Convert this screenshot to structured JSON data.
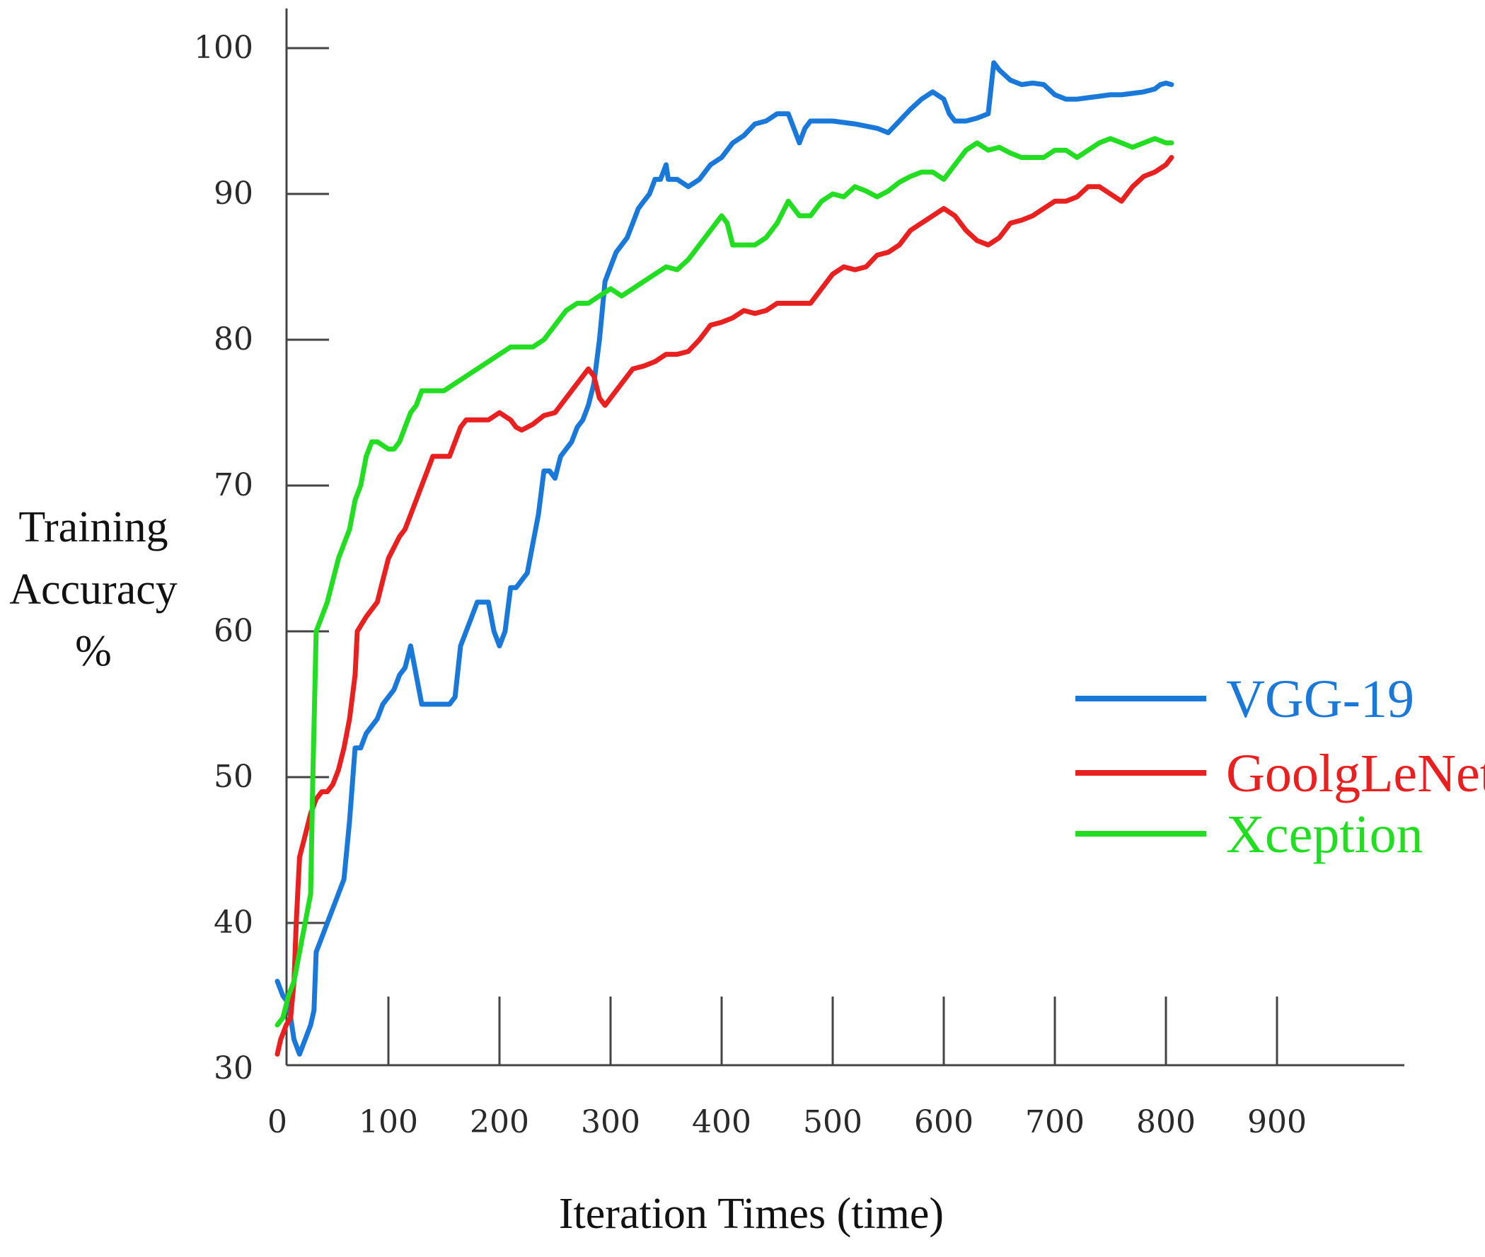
{
  "chart_data": {
    "type": "line",
    "title": "",
    "xlabel": "Iteration Times (time)",
    "ylabel_lines": [
      "Training",
      "Accuracy",
      "%"
    ],
    "xlim": [
      0,
      1000
    ],
    "ylim": [
      30,
      100
    ],
    "x_ticks": [
      0,
      100,
      200,
      300,
      400,
      500,
      600,
      700,
      800,
      900
    ],
    "y_ticks": [
      30,
      40,
      50,
      60,
      70,
      80,
      90,
      100
    ],
    "grid": false,
    "legend_position": "right",
    "series": [
      {
        "name": "VGG-19",
        "color": "#1a78d8",
        "points": [
          [
            0,
            36
          ],
          [
            5,
            35
          ],
          [
            10,
            34.5
          ],
          [
            15,
            32
          ],
          [
            20,
            31
          ],
          [
            25,
            32
          ],
          [
            30,
            33
          ],
          [
            33,
            34
          ],
          [
            35,
            38
          ],
          [
            40,
            39
          ],
          [
            45,
            40
          ],
          [
            50,
            41
          ],
          [
            55,
            42
          ],
          [
            60,
            43
          ],
          [
            65,
            47
          ],
          [
            70,
            52
          ],
          [
            75,
            52
          ],
          [
            80,
            53
          ],
          [
            85,
            53.5
          ],
          [
            90,
            54
          ],
          [
            95,
            55
          ],
          [
            100,
            55.5
          ],
          [
            105,
            56
          ],
          [
            110,
            57
          ],
          [
            115,
            57.5
          ],
          [
            120,
            59
          ],
          [
            125,
            57
          ],
          [
            130,
            55
          ],
          [
            135,
            55
          ],
          [
            140,
            55
          ],
          [
            145,
            55
          ],
          [
            150,
            55
          ],
          [
            155,
            55
          ],
          [
            160,
            55.5
          ],
          [
            165,
            59
          ],
          [
            170,
            60
          ],
          [
            175,
            61
          ],
          [
            180,
            62
          ],
          [
            185,
            62
          ],
          [
            190,
            62
          ],
          [
            195,
            60
          ],
          [
            200,
            59
          ],
          [
            205,
            60
          ],
          [
            210,
            63
          ],
          [
            215,
            63
          ],
          [
            220,
            63.5
          ],
          [
            225,
            64
          ],
          [
            230,
            66
          ],
          [
            235,
            68
          ],
          [
            240,
            71
          ],
          [
            245,
            71
          ],
          [
            250,
            70.5
          ],
          [
            255,
            72
          ],
          [
            260,
            72.5
          ],
          [
            265,
            73
          ],
          [
            270,
            74
          ],
          [
            275,
            74.5
          ],
          [
            280,
            75.5
          ],
          [
            285,
            77
          ],
          [
            290,
            80
          ],
          [
            295,
            84
          ],
          [
            300,
            85
          ],
          [
            305,
            86
          ],
          [
            310,
            86.5
          ],
          [
            315,
            87
          ],
          [
            320,
            88
          ],
          [
            325,
            89
          ],
          [
            330,
            89.5
          ],
          [
            335,
            90
          ],
          [
            340,
            91
          ],
          [
            345,
            91
          ],
          [
            350,
            92
          ],
          [
            352,
            91
          ],
          [
            360,
            91
          ],
          [
            370,
            90.5
          ],
          [
            380,
            91
          ],
          [
            390,
            92
          ],
          [
            400,
            92.5
          ],
          [
            410,
            93.5
          ],
          [
            420,
            94
          ],
          [
            430,
            94.8
          ],
          [
            440,
            95
          ],
          [
            450,
            95.5
          ],
          [
            460,
            95.5
          ],
          [
            465,
            94.5
          ],
          [
            470,
            93.5
          ],
          [
            475,
            94.5
          ],
          [
            480,
            95
          ],
          [
            490,
            95
          ],
          [
            500,
            95
          ],
          [
            520,
            94.8
          ],
          [
            540,
            94.5
          ],
          [
            550,
            94.2
          ],
          [
            560,
            95
          ],
          [
            570,
            95.8
          ],
          [
            580,
            96.5
          ],
          [
            590,
            97
          ],
          [
            600,
            96.5
          ],
          [
            605,
            95.5
          ],
          [
            610,
            95
          ],
          [
            620,
            95
          ],
          [
            630,
            95.2
          ],
          [
            640,
            95.5
          ],
          [
            645,
            99
          ],
          [
            650,
            98.5
          ],
          [
            660,
            97.8
          ],
          [
            670,
            97.5
          ],
          [
            680,
            97.6
          ],
          [
            690,
            97.5
          ],
          [
            700,
            96.8
          ],
          [
            710,
            96.5
          ],
          [
            720,
            96.5
          ],
          [
            730,
            96.6
          ],
          [
            740,
            96.7
          ],
          [
            750,
            96.8
          ],
          [
            760,
            96.8
          ],
          [
            770,
            96.9
          ],
          [
            780,
            97
          ],
          [
            790,
            97.2
          ],
          [
            795,
            97.5
          ],
          [
            800,
            97.6
          ],
          [
            805,
            97.5
          ]
        ]
      },
      {
        "name": "GoolgLeNet",
        "color": "#e82020",
        "points": [
          [
            0,
            31
          ],
          [
            3,
            32
          ],
          [
            8,
            33
          ],
          [
            12,
            33.5
          ],
          [
            15,
            36
          ],
          [
            17,
            40
          ],
          [
            20,
            44.5
          ],
          [
            25,
            46
          ],
          [
            30,
            47.5
          ],
          [
            35,
            48.5
          ],
          [
            40,
            49
          ],
          [
            45,
            49
          ],
          [
            50,
            49.5
          ],
          [
            55,
            50.5
          ],
          [
            60,
            52
          ],
          [
            65,
            54
          ],
          [
            70,
            57
          ],
          [
            72,
            60
          ],
          [
            80,
            61
          ],
          [
            90,
            62
          ],
          [
            95,
            63.5
          ],
          [
            100,
            65
          ],
          [
            110,
            66.5
          ],
          [
            115,
            67
          ],
          [
            120,
            68
          ],
          [
            125,
            69
          ],
          [
            130,
            70
          ],
          [
            135,
            71
          ],
          [
            140,
            72
          ],
          [
            150,
            72
          ],
          [
            155,
            72
          ],
          [
            160,
            73
          ],
          [
            165,
            74
          ],
          [
            170,
            74.5
          ],
          [
            180,
            74.5
          ],
          [
            190,
            74.5
          ],
          [
            200,
            75
          ],
          [
            210,
            74.5
          ],
          [
            215,
            74
          ],
          [
            220,
            73.8
          ],
          [
            230,
            74.2
          ],
          [
            240,
            74.8
          ],
          [
            250,
            75
          ],
          [
            260,
            76
          ],
          [
            270,
            77
          ],
          [
            280,
            78
          ],
          [
            285,
            77.5
          ],
          [
            290,
            76
          ],
          [
            295,
            75.5
          ],
          [
            300,
            76
          ],
          [
            310,
            77
          ],
          [
            320,
            78
          ],
          [
            330,
            78.2
          ],
          [
            340,
            78.5
          ],
          [
            350,
            79
          ],
          [
            360,
            79
          ],
          [
            370,
            79.2
          ],
          [
            380,
            80
          ],
          [
            390,
            81
          ],
          [
            400,
            81.2
          ],
          [
            410,
            81.5
          ],
          [
            420,
            82
          ],
          [
            430,
            81.8
          ],
          [
            440,
            82
          ],
          [
            450,
            82.5
          ],
          [
            460,
            82.5
          ],
          [
            470,
            82.5
          ],
          [
            480,
            82.5
          ],
          [
            490,
            83.5
          ],
          [
            500,
            84.5
          ],
          [
            510,
            85
          ],
          [
            520,
            84.8
          ],
          [
            530,
            85
          ],
          [
            540,
            85.8
          ],
          [
            550,
            86
          ],
          [
            560,
            86.5
          ],
          [
            570,
            87.5
          ],
          [
            580,
            88
          ],
          [
            590,
            88.5
          ],
          [
            600,
            89
          ],
          [
            610,
            88.5
          ],
          [
            620,
            87.5
          ],
          [
            630,
            86.8
          ],
          [
            640,
            86.5
          ],
          [
            650,
            87
          ],
          [
            660,
            88
          ],
          [
            670,
            88.2
          ],
          [
            680,
            88.5
          ],
          [
            690,
            89
          ],
          [
            700,
            89.5
          ],
          [
            710,
            89.5
          ],
          [
            720,
            89.8
          ],
          [
            730,
            90.5
          ],
          [
            740,
            90.5
          ],
          [
            750,
            90
          ],
          [
            760,
            89.5
          ],
          [
            770,
            90.5
          ],
          [
            780,
            91.2
          ],
          [
            790,
            91.5
          ],
          [
            800,
            92
          ],
          [
            805,
            92.5
          ]
        ]
      },
      {
        "name": "Xception",
        "color": "#22dd22",
        "points": [
          [
            0,
            33
          ],
          [
            5,
            33.5
          ],
          [
            10,
            35
          ],
          [
            15,
            36
          ],
          [
            20,
            38
          ],
          [
            25,
            40
          ],
          [
            30,
            42
          ],
          [
            32,
            50
          ],
          [
            35,
            60
          ],
          [
            40,
            61
          ],
          [
            45,
            62
          ],
          [
            50,
            63.5
          ],
          [
            55,
            65
          ],
          [
            60,
            66
          ],
          [
            65,
            67
          ],
          [
            70,
            69
          ],
          [
            75,
            70
          ],
          [
            80,
            72
          ],
          [
            85,
            73
          ],
          [
            90,
            73
          ],
          [
            100,
            72.5
          ],
          [
            105,
            72.5
          ],
          [
            110,
            73
          ],
          [
            115,
            74
          ],
          [
            120,
            75
          ],
          [
            125,
            75.5
          ],
          [
            130,
            76.5
          ],
          [
            140,
            76.5
          ],
          [
            150,
            76.5
          ],
          [
            160,
            77
          ],
          [
            170,
            77.5
          ],
          [
            180,
            78
          ],
          [
            190,
            78.5
          ],
          [
            200,
            79
          ],
          [
            210,
            79.5
          ],
          [
            220,
            79.5
          ],
          [
            230,
            79.5
          ],
          [
            240,
            80
          ],
          [
            250,
            81
          ],
          [
            260,
            82
          ],
          [
            270,
            82.5
          ],
          [
            280,
            82.5
          ],
          [
            290,
            83
          ],
          [
            300,
            83.5
          ],
          [
            310,
            83
          ],
          [
            320,
            83.5
          ],
          [
            330,
            84
          ],
          [
            340,
            84.5
          ],
          [
            350,
            85
          ],
          [
            360,
            84.8
          ],
          [
            370,
            85.5
          ],
          [
            380,
            86.5
          ],
          [
            390,
            87.5
          ],
          [
            400,
            88.5
          ],
          [
            405,
            88
          ],
          [
            410,
            86.5
          ],
          [
            420,
            86.5
          ],
          [
            430,
            86.5
          ],
          [
            440,
            87
          ],
          [
            450,
            88
          ],
          [
            460,
            89.5
          ],
          [
            470,
            88.5
          ],
          [
            480,
            88.5
          ],
          [
            490,
            89.5
          ],
          [
            500,
            90
          ],
          [
            510,
            89.8
          ],
          [
            520,
            90.5
          ],
          [
            530,
            90.2
          ],
          [
            540,
            89.8
          ],
          [
            550,
            90.2
          ],
          [
            560,
            90.8
          ],
          [
            570,
            91.2
          ],
          [
            580,
            91.5
          ],
          [
            590,
            91.5
          ],
          [
            600,
            91
          ],
          [
            610,
            92
          ],
          [
            620,
            93
          ],
          [
            630,
            93.5
          ],
          [
            640,
            93
          ],
          [
            650,
            93.2
          ],
          [
            660,
            92.8
          ],
          [
            670,
            92.5
          ],
          [
            680,
            92.5
          ],
          [
            690,
            92.5
          ],
          [
            700,
            93
          ],
          [
            710,
            93
          ],
          [
            720,
            92.5
          ],
          [
            730,
            93
          ],
          [
            740,
            93.5
          ],
          [
            750,
            93.8
          ],
          [
            760,
            93.5
          ],
          [
            770,
            93.2
          ],
          [
            780,
            93.5
          ],
          [
            790,
            93.8
          ],
          [
            800,
            93.5
          ],
          [
            805,
            93.5
          ]
        ]
      }
    ]
  }
}
